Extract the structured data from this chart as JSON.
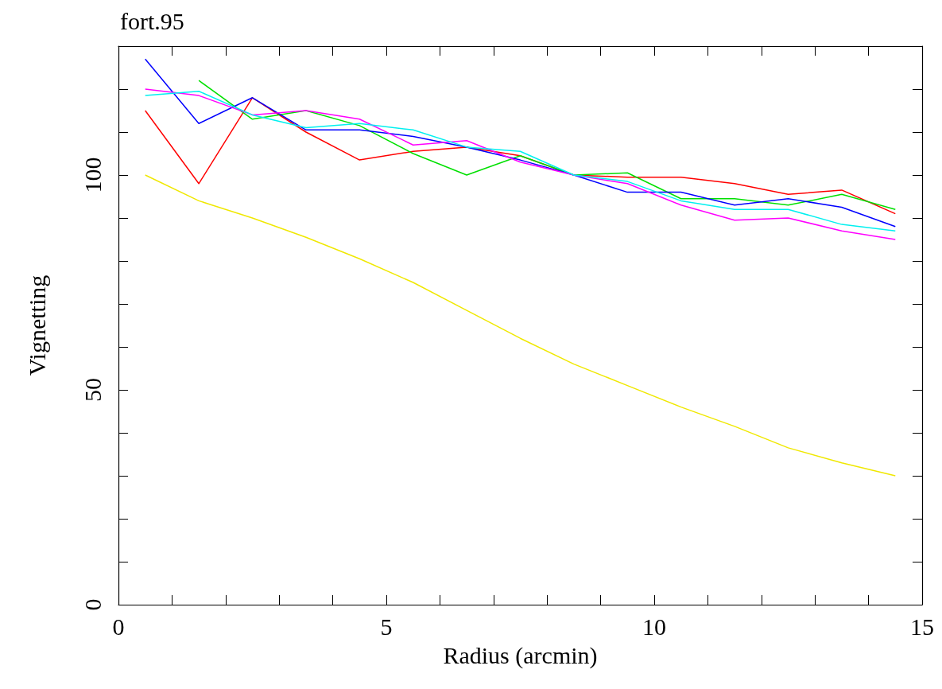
{
  "chart_data": {
    "type": "line",
    "title": "fort.95",
    "xlabel": "Radius (arcmin)",
    "ylabel": "Vignetting",
    "x": [
      0.5,
      1.5,
      2.5,
      3.5,
      4.5,
      5.5,
      6.5,
      7.5,
      8.5,
      9.5,
      10.5,
      11.5,
      12.5,
      13.5,
      14.5
    ],
    "series": [
      {
        "color": "#ff0000",
        "values": [
          115,
          98,
          118,
          110,
          103.5,
          105.5,
          106.5,
          104.5,
          100,
          99.5,
          99.5,
          98,
          95.5,
          96.5,
          91
        ]
      },
      {
        "color": "#00e000",
        "values": [
          null,
          122,
          113,
          115,
          111.5,
          105,
          100,
          104.5,
          100,
          100.5,
          94.5,
          94.5,
          93,
          95.5,
          92
        ]
      },
      {
        "color": "#0000ff",
        "values": [
          127,
          112,
          118,
          110.5,
          110.5,
          109,
          106.5,
          103.5,
          100,
          96,
          96,
          93,
          94.5,
          92.5,
          88
        ]
      },
      {
        "color": "#ff00ff",
        "values": [
          120,
          118.5,
          114,
          115,
          113,
          107,
          108,
          103,
          100,
          98,
          93,
          89.5,
          90,
          87,
          85
        ]
      },
      {
        "color": "#00f0f0",
        "values": [
          118.5,
          119.5,
          114,
          111,
          112,
          110.5,
          106.5,
          105.5,
          100,
          98.5,
          94,
          92,
          92,
          88.5,
          87
        ]
      },
      {
        "color": "#f0e800",
        "values": [
          100,
          94,
          90,
          85.5,
          80.5,
          75,
          68.5,
          62,
          56,
          51,
          46,
          41.5,
          36.5,
          33,
          30
        ]
      }
    ],
    "xlim": [
      0,
      15
    ],
    "xticks": [
      0,
      {
        "value": 1,
        "label": null
      },
      {
        "value": 2,
        "label": null
      },
      {
        "value": 3,
        "label": null
      },
      {
        "value": 4,
        "label": null
      },
      5,
      {
        "value": 6,
        "label": null
      },
      {
        "value": 7,
        "label": null
      },
      {
        "value": 8,
        "label": null
      },
      {
        "value": 9,
        "label": null
      },
      10,
      {
        "value": 11,
        "label": null
      },
      {
        "value": 12,
        "label": null
      },
      {
        "value": 13,
        "label": null
      },
      {
        "value": 14,
        "label": null
      },
      15
    ],
    "ylim": [
      0,
      130
    ],
    "yticks": [
      0,
      {
        "value": 10,
        "label": null
      },
      {
        "value": 20,
        "label": null
      },
      {
        "value": 30,
        "label": null
      },
      {
        "value": 40,
        "label": null
      },
      50,
      {
        "value": 60,
        "label": null
      },
      {
        "value": 70,
        "label": null
      },
      {
        "value": 80,
        "label": null
      },
      {
        "value": 90,
        "label": null
      },
      100,
      {
        "value": 110,
        "label": null
      },
      {
        "value": 120,
        "label": null
      }
    ],
    "line_style": "solid",
    "marker": "none",
    "grid": false
  }
}
